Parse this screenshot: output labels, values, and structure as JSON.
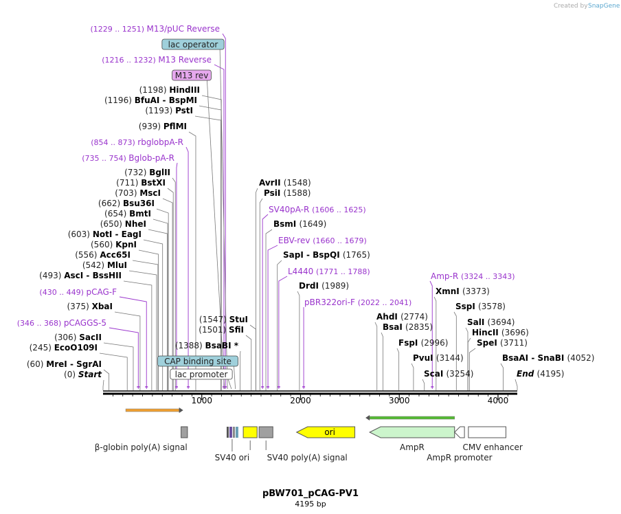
{
  "header": {
    "credit": "Created by",
    "brand": "SnapGene"
  },
  "plasmid": {
    "name": "pBW701_pCAG-PV1",
    "length_label": "4195 bp",
    "length": 4195
  },
  "ticks": [
    "1000",
    "2000",
    "3000",
    "4000"
  ],
  "sites": [
    {
      "pos": 60,
      "label": "(60)",
      "name": "MreI",
      "name2": "SgrAI"
    },
    {
      "pos": 0,
      "label": "(0)",
      "name": "Start",
      "italic": true
    },
    {
      "pos": 245,
      "label": "(245)",
      "name": "EcoO109I"
    },
    {
      "pos": 306,
      "label": "(306)",
      "name": "SacII"
    },
    {
      "pos": 375,
      "label": "(375)",
      "name": "XbaI"
    },
    {
      "pos": 493,
      "label": "(493)",
      "name": "AscI",
      "name2": "BssHII"
    },
    {
      "pos": 542,
      "label": "(542)",
      "name": "MluI"
    },
    {
      "pos": 556,
      "label": "(556)",
      "name": "Acc65I"
    },
    {
      "pos": 560,
      "label": "(560)",
      "name": "KpnI"
    },
    {
      "pos": 603,
      "label": "(603)",
      "name": "NotI",
      "name2": "EagI"
    },
    {
      "pos": 650,
      "label": "(650)",
      "name": "NheI"
    },
    {
      "pos": 654,
      "label": "(654)",
      "name": "BmtI"
    },
    {
      "pos": 662,
      "label": "(662)",
      "name": "Bsu36I"
    },
    {
      "pos": 703,
      "label": "(703)",
      "name": "MscI"
    },
    {
      "pos": 711,
      "label": "(711)",
      "name": "BstXI"
    },
    {
      "pos": 732,
      "label": "(732)",
      "name": "BglII"
    },
    {
      "pos": 939,
      "label": "(939)",
      "name": "PflMI"
    },
    {
      "pos": 1193,
      "label": "(1193)",
      "name": "PstI"
    },
    {
      "pos": 1196,
      "label": "(1196)",
      "name": "BfuAI",
      "name2": "BspMI"
    },
    {
      "pos": 1198,
      "label": "(1198)",
      "name": "HindIII"
    },
    {
      "pos": 1388,
      "label": "(1388)",
      "name": "BsaBI *"
    },
    {
      "pos": 1501,
      "label": "(1501)",
      "name": "SfiI"
    },
    {
      "pos": 1547,
      "label": "(1547)",
      "name": "StuI"
    },
    {
      "pos": 1548,
      "label": "(1548)",
      "name": "AvrII"
    },
    {
      "pos": 1588,
      "label": "(1588)",
      "name": "PsiI"
    },
    {
      "pos": 1649,
      "label": "(1649)",
      "name": "BsmI"
    },
    {
      "pos": 1765,
      "label": "(1765)",
      "name": "SapI",
      "name2": "BspQI"
    },
    {
      "pos": 1989,
      "label": "(1989)",
      "name": "DrdI"
    },
    {
      "pos": 2774,
      "label": "(2774)",
      "name": "AhdI"
    },
    {
      "pos": 2835,
      "label": "(2835)",
      "name": "BsaI"
    },
    {
      "pos": 2996,
      "label": "(2996)",
      "name": "FspI"
    },
    {
      "pos": 3144,
      "label": "(3144)",
      "name": "PvuI"
    },
    {
      "pos": 3254,
      "label": "(3254)",
      "name": "ScaI"
    },
    {
      "pos": 3373,
      "label": "(3373)",
      "name": "XmnI"
    },
    {
      "pos": 3578,
      "label": "(3578)",
      "name": "SspI"
    },
    {
      "pos": 3694,
      "label": "(3694)",
      "name": "SalI"
    },
    {
      "pos": 3696,
      "label": "(3696)",
      "name": "HincII"
    },
    {
      "pos": 3711,
      "label": "(3711)",
      "name": "SpeI"
    },
    {
      "pos": 4052,
      "label": "(4052)",
      "name": "BsaAI",
      "name2": "SnaBI"
    },
    {
      "pos": 4195,
      "label": "(4195)",
      "name": "End",
      "italic": true
    }
  ],
  "primers": [
    {
      "pos": 1240,
      "range": "(1229 .. 1251)",
      "name": "M13/pUC Reverse"
    },
    {
      "pos": 1224,
      "range": "(1216 .. 1232)",
      "name": "M13 Reverse"
    },
    {
      "pos": 863,
      "range": "(854 .. 873)",
      "name": "rbglobpA-R"
    },
    {
      "pos": 744,
      "range": "(735 .. 754)",
      "name": "Bglob-pA-R"
    },
    {
      "pos": 440,
      "range": "(430 .. 449)",
      "name": "pCAG-F"
    },
    {
      "pos": 357,
      "range": "(346 .. 368)",
      "name": "pCAGGS-5"
    },
    {
      "pos": 1615,
      "range": "(1606 .. 1625)",
      "name": "SV40pA-R"
    },
    {
      "pos": 1670,
      "range": "(1660 .. 1679)",
      "name": "EBV-rev"
    },
    {
      "pos": 1780,
      "range": "(1771 .. 1788)",
      "name": "L4440"
    },
    {
      "pos": 2032,
      "range": "(2022 .. 2041)",
      "name": "pBR322ori-F"
    },
    {
      "pos": 3334,
      "range": "(3324 .. 3343)",
      "name": "Amp-R"
    }
  ],
  "boxed_features": [
    {
      "pos": 1260,
      "name": "lac operator",
      "color": "#9fd0db"
    },
    {
      "pos": 1230,
      "name": "M13 rev",
      "color": "#e6a8ee"
    },
    {
      "pos": 1340,
      "name": "CAP binding site",
      "color": "#9fd0db"
    },
    {
      "pos": 1300,
      "name": "lac promoter",
      "color": "#ffffff"
    }
  ],
  "features": [
    {
      "name": "β-globin poly(A) signal",
      "start": 790,
      "end": 855,
      "color": "#a0a0a0"
    },
    {
      "name": "SV40 ori",
      "start": 1215,
      "end": 1400,
      "color": "#6a9fb5"
    },
    {
      "name": "",
      "start": 1420,
      "end": 1560,
      "color": "#ffff00"
    },
    {
      "name": "SV40 poly(A) signal",
      "start": 1580,
      "end": 1720,
      "color": "#a0a0a0"
    },
    {
      "name": "ori",
      "start": 1960,
      "end": 2550,
      "color": "#ffff00"
    },
    {
      "name": "AmpR",
      "start": 2700,
      "end": 3560,
      "color": "#ccf5cc"
    },
    {
      "name": "AmpR promoter",
      "start": 3560,
      "end": 3660,
      "color": "#ffffff"
    },
    {
      "name": "CMV enhancer",
      "start": 3700,
      "end": 4080,
      "color": "#ffffff"
    }
  ],
  "orfs": [
    {
      "start": 230,
      "end": 770,
      "color": "#f0a030",
      "dir": "forward"
    },
    {
      "start": 2700,
      "end": 3560,
      "color": "#55bb33",
      "dir": "reverse"
    }
  ],
  "colors": {
    "enzyme": "#000000",
    "primer": "#9933cc",
    "line": "#555555",
    "primer_line": "#9933cc"
  }
}
